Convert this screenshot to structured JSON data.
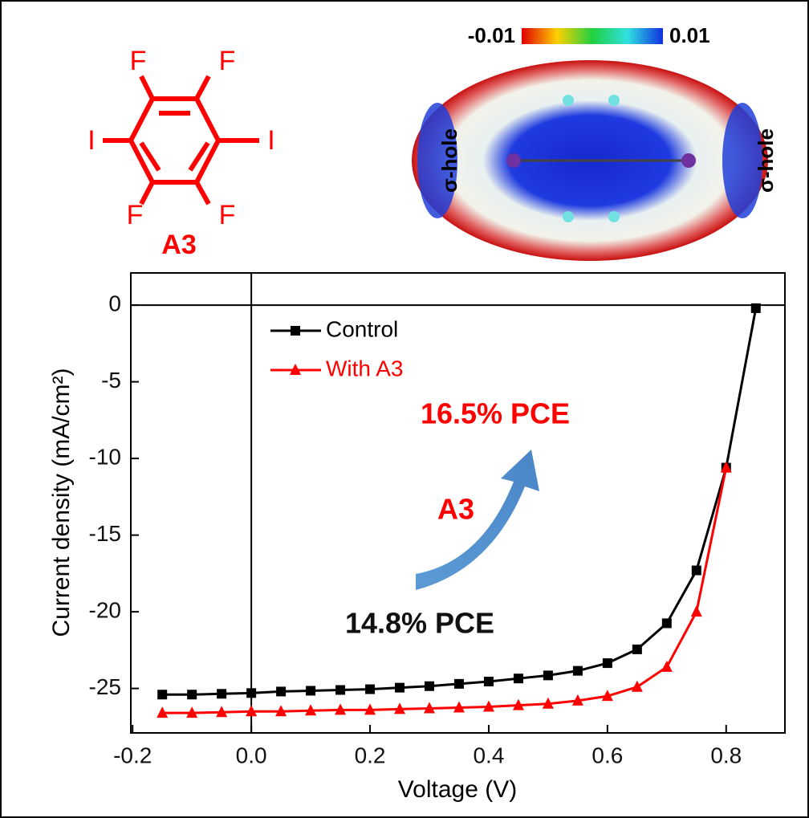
{
  "molecule": {
    "atoms": [
      "F",
      "F",
      "I",
      "I",
      "F",
      "F"
    ],
    "label": "A3"
  },
  "esp_map": {
    "scale_min": "-0.01",
    "scale_max": "0.01",
    "left_label": "σ-hole",
    "right_label": "σ-hole"
  },
  "chart_data": {
    "type": "line",
    "x_label": "Voltage (V)",
    "y_label": "Current density (mA/cm²)",
    "x": [
      -0.15,
      -0.1,
      -0.05,
      0.0,
      0.05,
      0.1,
      0.15,
      0.2,
      0.25,
      0.3,
      0.35,
      0.4,
      0.45,
      0.5,
      0.55,
      0.6,
      0.65,
      0.7,
      0.75,
      0.8,
      0.85
    ],
    "series": [
      {
        "name": "Control",
        "color": "#000000",
        "marker": "square",
        "values": [
          -25.4,
          -25.4,
          -25.35,
          -25.3,
          -25.2,
          -25.15,
          -25.1,
          -25.05,
          -24.95,
          -24.85,
          -24.7,
          -24.55,
          -24.35,
          -24.15,
          -23.85,
          -23.35,
          -22.45,
          -20.75,
          -17.3,
          -10.6,
          -0.2
        ]
      },
      {
        "name": "With A3",
        "color": "#ff0000",
        "marker": "triangle",
        "values": [
          -26.6,
          -26.6,
          -26.55,
          -26.5,
          -26.5,
          -26.45,
          -26.4,
          -26.4,
          -26.35,
          -26.3,
          -26.25,
          -26.2,
          -26.1,
          -26.0,
          -25.8,
          -25.5,
          -24.9,
          -23.6,
          -20.0,
          -10.6,
          null
        ]
      }
    ],
    "xlim": [
      -0.203,
      0.899
    ],
    "ylim": [
      -27.9,
      2.1
    ],
    "xticks": [
      -0.2,
      {
        "value": 0,
        "label": "0.0"
      },
      0.2,
      0.4,
      0.6,
      0.8
    ],
    "yticks": [
      0,
      -5,
      -10,
      -15,
      -20,
      -25
    ],
    "zero_lines": true,
    "legend": "upper left",
    "annotations": {
      "improved": "16.5% PCE",
      "additive": "A3",
      "baseline": "14.8% PCE"
    }
  }
}
